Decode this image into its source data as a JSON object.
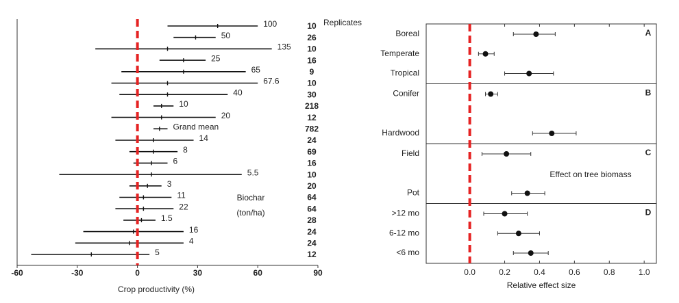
{
  "chart_data": [
    {
      "type": "forest",
      "labels": [
        "100",
        "50",
        "135",
        "25",
        "65",
        "67.6",
        "40",
        "10",
        "20",
        "Grand mean",
        "14",
        "8",
        "6",
        "5.5",
        "3",
        "11",
        "22",
        "1.5",
        "16",
        "4",
        "5"
      ],
      "replicates": [
        10,
        26,
        10,
        16,
        9,
        10,
        30,
        218,
        12,
        782,
        24,
        69,
        16,
        10,
        20,
        64,
        64,
        28,
        24,
        24,
        12
      ],
      "values": [
        40,
        29,
        15,
        23,
        23,
        15,
        15,
        12,
        12,
        11,
        8,
        8,
        7,
        7,
        5,
        3,
        3,
        2,
        -2,
        -4,
        -23
      ],
      "lower": [
        15,
        18,
        -21,
        11,
        -8,
        -13,
        -9,
        8,
        -13,
        8,
        -11,
        -4,
        -2,
        -39,
        -4,
        -9,
        -11,
        -7,
        -27,
        -31,
        -53
      ],
      "upper": [
        60,
        39,
        67,
        34,
        54,
        60,
        45,
        18,
        39,
        15,
        28,
        20,
        15,
        52,
        12,
        17,
        18,
        9,
        23,
        23,
        6
      ],
      "xlim": [
        -60,
        90
      ],
      "xticks": [
        -60,
        -30,
        0,
        30,
        60,
        90
      ],
      "reference_line": 0,
      "reference_color": "#e52222",
      "replicates_title": "Replicates",
      "labels_title": [
        "Biochar",
        "(ton/ha)"
      ],
      "xlabel": "Crop productivity (%)"
    },
    {
      "type": "forest_panels",
      "panels": [
        {
          "label": "A",
          "categories": [
            "Boreal",
            "Temperate",
            "Tropical"
          ],
          "values": [
            0.38,
            0.09,
            0.34
          ],
          "lower": [
            0.25,
            0.05,
            0.2
          ],
          "upper": [
            0.49,
            0.14,
            0.48
          ]
        },
        {
          "label": "B",
          "categories": [
            "Conifer",
            "Hardwood"
          ],
          "values": [
            0.12,
            0.47
          ],
          "lower": [
            0.09,
            0.36
          ],
          "upper": [
            0.16,
            0.61
          ]
        },
        {
          "label": "C",
          "categories": [
            "Field",
            "Pot"
          ],
          "values": [
            0.21,
            0.33
          ],
          "lower": [
            0.07,
            0.24
          ],
          "upper": [
            0.35,
            0.43
          ]
        },
        {
          "label": "D",
          "categories": [
            ">12 mo",
            "6-12 mo",
            "<6 mo"
          ],
          "values": [
            0.2,
            0.28,
            0.35
          ],
          "lower": [
            0.08,
            0.16,
            0.25
          ],
          "upper": [
            0.33,
            0.4,
            0.45
          ]
        }
      ],
      "xlim": [
        -0.25,
        1.07
      ],
      "xticks": [
        {
          "value": 0,
          "label": "0.0"
        },
        {
          "value": 0.2,
          "label": "0.2"
        },
        {
          "value": 0.4,
          "label": "0.4"
        },
        {
          "value": 0.6,
          "label": "0.6"
        },
        {
          "value": 0.8,
          "label": "0.8"
        },
        {
          "value": 1,
          "label": "1.0"
        }
      ],
      "reference_line": 0,
      "reference_color": "#e52222",
      "xlabel": "Relative effect size",
      "annotation": "Effect on tree biomass"
    }
  ]
}
